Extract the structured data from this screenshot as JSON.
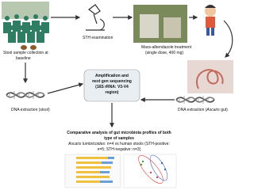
{
  "nodes": [
    {
      "label": [
        "Stool sample collection  at",
        "baseline"
      ]
    },
    {
      "label": [
        "STH examination"
      ]
    },
    {
      "label": [
        "Mass-albendazole treatment",
        "(single dose, 400 mg)"
      ]
    },
    {
      "label": [
        "Amplification and",
        "next gen sequencing",
        "(16S rRNA: V3-V4",
        "region)"
      ]
    },
    {
      "label": [
        "DNA extraction (stool)"
      ]
    },
    {
      "label": [
        "DNA extraction (",
        "Ascaris",
        " gut)"
      ]
    },
    {
      "label": [
        "Comparative analysis of gut microbiota profiles of both",
        "type of samples"
      ]
    },
    {
      "label": [
        "Ascaris lumbricoides",
        ": n=4 vs human stools (STH-positive:",
        "n=5; STH-negative: n=3)"
      ]
    }
  ]
}
